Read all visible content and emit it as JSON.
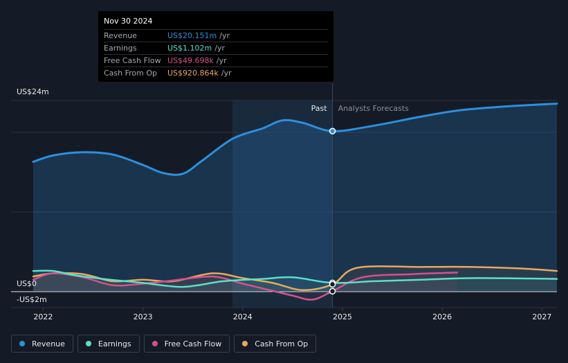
{
  "tooltip": {
    "date": "Nov 30 2024",
    "rows": [
      {
        "label": "Revenue",
        "value": "US$20.151m",
        "unit": "/yr",
        "color": "#2d8fdd"
      },
      {
        "label": "Earnings",
        "value": "US$1.102m",
        "unit": "/yr",
        "color": "#5ce0c9"
      },
      {
        "label": "Free Cash Flow",
        "value": "US$49.698k",
        "unit": "/yr",
        "color": "#d4528e"
      },
      {
        "label": "Cash From Op",
        "value": "US$920.864k",
        "unit": "/yr",
        "color": "#e8a95c"
      }
    ]
  },
  "legend": [
    {
      "label": "Revenue",
      "color": "#2d8fdd"
    },
    {
      "label": "Earnings",
      "color": "#5ce0c9"
    },
    {
      "label": "Free Cash Flow",
      "color": "#d4528e"
    },
    {
      "label": "Cash From Op",
      "color": "#e8a95c"
    }
  ],
  "chart_data": {
    "type": "line",
    "y_unit": "US$ m",
    "ylim": [
      -2,
      24
    ],
    "xlim": [
      2021.9,
      2027.15
    ],
    "divider_x": 2024.9,
    "past_label": "Past",
    "forecast_label": "Analysts Forecasts",
    "y_tick_labels": [
      {
        "value": 24,
        "label": "US$24m"
      },
      {
        "value": 0,
        "label": "US$0"
      },
      {
        "value": -2,
        "label": "-US$2m"
      }
    ],
    "x_tick_labels": [
      {
        "value": 2022,
        "label": "2022"
      },
      {
        "value": 2023,
        "label": "2023"
      },
      {
        "value": 2024,
        "label": "2024"
      },
      {
        "value": 2025,
        "label": "2025"
      },
      {
        "value": 2026,
        "label": "2026"
      },
      {
        "value": 2027,
        "label": "2027"
      }
    ],
    "series": [
      {
        "name": "Revenue",
        "color": "#2d8fdd",
        "area": true,
        "x": [
          2021.9,
          2022.1,
          2022.4,
          2022.7,
          2023.0,
          2023.2,
          2023.4,
          2023.6,
          2023.9,
          2024.2,
          2024.4,
          2024.6,
          2024.9,
          2025.3,
          2025.8,
          2026.2,
          2026.7,
          2027.15
        ],
        "y": [
          16.3,
          17.1,
          17.5,
          17.2,
          15.9,
          14.9,
          14.8,
          16.5,
          19.2,
          20.5,
          21.5,
          21.2,
          20.15,
          20.8,
          22.0,
          22.8,
          23.3,
          23.6
        ]
      },
      {
        "name": "Earnings",
        "color": "#5ce0c9",
        "area": false,
        "x": [
          2021.9,
          2022.1,
          2022.3,
          2022.6,
          2023.0,
          2023.4,
          2023.8,
          2024.2,
          2024.5,
          2024.9,
          2025.3,
          2025.8,
          2026.3,
          2027.15
        ],
        "y": [
          2.6,
          2.6,
          2.1,
          1.6,
          1.1,
          0.6,
          1.3,
          1.6,
          1.8,
          1.1,
          1.3,
          1.5,
          1.7,
          1.6
        ]
      },
      {
        "name": "Free Cash Flow",
        "color": "#d4528e",
        "area": false,
        "x": [
          2021.9,
          2022.1,
          2022.4,
          2022.7,
          2023.0,
          2023.3,
          2023.7,
          2024.0,
          2024.3,
          2024.5,
          2024.7,
          2024.9,
          2025.2,
          2025.7,
          2026.15
        ],
        "y": [
          1.5,
          2.3,
          1.8,
          0.8,
          1.0,
          1.4,
          1.9,
          1.0,
          0.1,
          -0.5,
          -1.0,
          0.05,
          1.8,
          2.2,
          2.4
        ]
      },
      {
        "name": "Cash From Op",
        "color": "#e8a95c",
        "area": false,
        "x": [
          2021.9,
          2022.1,
          2022.4,
          2022.7,
          2023.0,
          2023.3,
          2023.7,
          2024.0,
          2024.3,
          2024.6,
          2024.9,
          2025.15,
          2025.8,
          2026.3,
          2026.8,
          2027.15
        ],
        "y": [
          1.9,
          2.3,
          2.2,
          1.3,
          1.5,
          1.3,
          2.3,
          1.7,
          1.1,
          0.2,
          0.92,
          3.0,
          3.1,
          3.1,
          2.9,
          2.6
        ]
      }
    ]
  }
}
